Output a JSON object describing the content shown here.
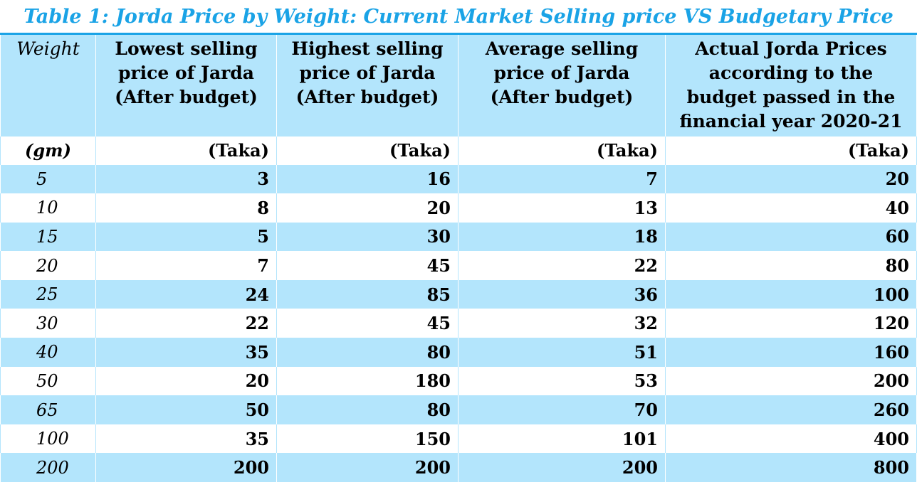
{
  "caption": "Table 1: Jorda Price by Weight: Current Market Selling price VS Budgetary Price",
  "headers": [
    "Weight",
    "Lowest selling price of Jarda (After budget)",
    "Highest selling price of Jarda (After budget)",
    "Average selling price of Jarda (After budget)",
    "Actual Jorda Prices according to the budget passed in the financial year 2020-21"
  ],
  "units": [
    "(gm)",
    "(Taka)",
    "(Taka)",
    "(Taka)",
    "(Taka)"
  ],
  "rows": [
    [
      "5",
      "3",
      "16",
      "7",
      "20"
    ],
    [
      "10",
      "8",
      "20",
      "13",
      "40"
    ],
    [
      "15",
      "5",
      "30",
      "18",
      "60"
    ],
    [
      "20",
      "7",
      "45",
      "22",
      "80"
    ],
    [
      "25",
      "24",
      "85",
      "36",
      "100"
    ],
    [
      "30",
      "22",
      "45",
      "32",
      "120"
    ],
    [
      "40",
      "35",
      "80",
      "51",
      "160"
    ],
    [
      "50",
      "20",
      "180",
      "53",
      "200"
    ],
    [
      "65",
      "50",
      "80",
      "70",
      "260"
    ],
    [
      "100",
      "35",
      "150",
      "101",
      "400"
    ],
    [
      "200",
      "200",
      "200",
      "200",
      "800"
    ]
  ],
  "colors": {
    "caption": "#1aa3e6",
    "shaded_row": "#b3e5fc",
    "rule": "#1aa3e6"
  }
}
